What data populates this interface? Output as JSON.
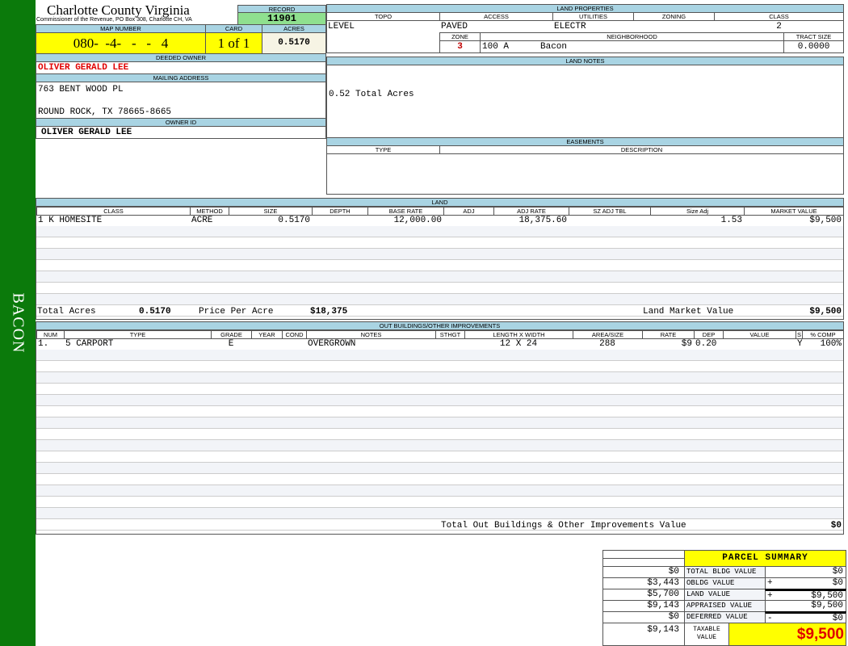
{
  "sidebar": {
    "label": "BACON",
    "color": "#0b7a0b"
  },
  "header": {
    "county": "Charlotte County Virginia",
    "subtitle": "Commissioner of the Revenue, PO Box 308, Charlotte CH, VA",
    "record_label": "RECORD",
    "record": "11901",
    "map_label": "MAP NUMBER",
    "map_number": "080-  -4-   -   -   4",
    "card_label": "CARD",
    "card": "1 of 1",
    "acres_label": "ACRES",
    "acres": "0.5170"
  },
  "owner": {
    "deeded_label": "DEEDED OWNER",
    "deeded": "OLIVER GERALD LEE",
    "mailing_label": "MAILING ADDRESS",
    "address1": "763 BENT WOOD PL",
    "address2": "ROUND ROCK, TX 78665-8665",
    "owner_id_label": "OWNER ID",
    "owner_id": "OLIVER GERALD LEE"
  },
  "land_properties": {
    "title": "LAND PROPERTIES",
    "topo_label": "TOPO",
    "access_label": "ACCESS",
    "utilities_label": "UTILITIES",
    "zoning_label": "ZONING",
    "class_label": "CLASS",
    "topo": "LEVEL",
    "access": "PAVED",
    "utilities": "ELECTR",
    "zoning": "",
    "class": "2",
    "zone_label": "ZONE",
    "neighborhood_label": "NEIGHBORHOOD",
    "tract_label": "TRACT SIZE",
    "zone": "3",
    "neighborhood_code": "100 A",
    "neighborhood": "Bacon",
    "tract_size": "0.0000"
  },
  "land_notes": {
    "title": "LAND NOTES",
    "text": "0.52 Total Acres"
  },
  "easements": {
    "title": "EASEMENTS",
    "type_label": "TYPE",
    "description_label": "DESCRIPTION"
  },
  "land": {
    "title": "LAND",
    "columns": [
      "CLASS",
      "METHOD",
      "SIZE",
      "DEPTH",
      "BASE RATE",
      "ADJ",
      "ADJ RATE",
      "SZ ADJ TBL",
      "Size Adj",
      "MARKET VALUE"
    ],
    "rows": [
      [
        "1 K HOMESITE",
        "ACRE",
        "0.5170",
        "",
        "12,000.00",
        "",
        "18,375.60",
        "",
        "1.53",
        "$9,500"
      ]
    ],
    "total_acres_label": "Total Acres",
    "total_acres": "0.5170",
    "price_label": "Price Per Acre",
    "price": "$18,375",
    "market_label": "Land Market Value",
    "market": "$9,500"
  },
  "outbuildings": {
    "title": "OUT BUILDINGS/OTHER IMPROVEMENTS",
    "columns": [
      "NUM",
      "TYPE",
      "GRADE",
      "YEAR",
      "COND",
      "NOTES",
      "STHGT",
      "LENGTH X WIDTH",
      "AREA/SIZE",
      "RATE",
      "DEP",
      "VALUE",
      "S",
      "% COMP"
    ],
    "rows": [
      [
        "1.",
        "5 CARPORT",
        "E",
        "",
        "",
        "OVERGROWN",
        "",
        "12 X 24",
        "288",
        "$9",
        "0.20",
        "",
        "Y",
        "100%"
      ]
    ],
    "total_label": "Total Out Buildings & Other Improvements Value",
    "total": "$0"
  },
  "summary": {
    "title": "PARCEL SUMMARY",
    "rows": [
      {
        "left": "$0",
        "label": "TOTAL BLDG VALUE",
        "op": "",
        "value": "$0"
      },
      {
        "left": "$3,443",
        "label": "OBLDG VALUE",
        "op": "+",
        "value": "$0"
      },
      {
        "left": "$5,700",
        "label": "LAND VALUE",
        "op": "+",
        "value": "$9,500"
      },
      {
        "left": "$9,143",
        "label": "APPRAISED VALUE",
        "op": "",
        "value": "$9,500"
      },
      {
        "left": "$0",
        "label": "DEFERRED VALUE",
        "op": "-",
        "value": "$0"
      }
    ],
    "taxable_left": "$9,143",
    "taxable_label": "TAXABLE VALUE",
    "taxable": "$9,500"
  }
}
